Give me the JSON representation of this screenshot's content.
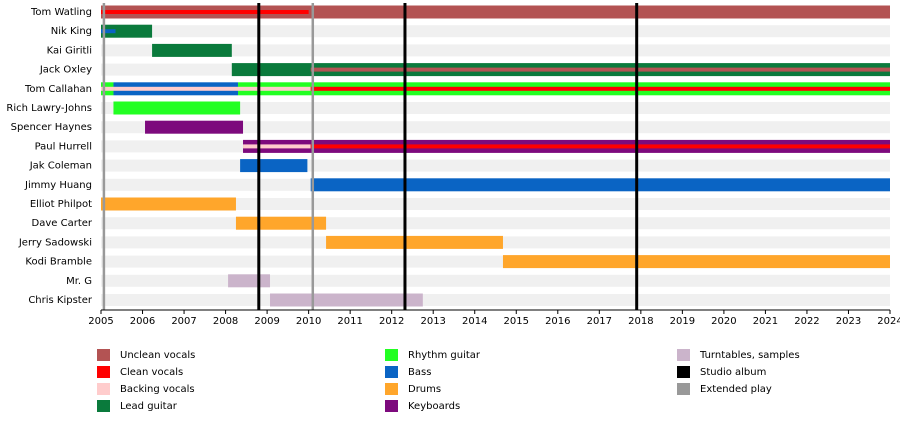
{
  "chart_data": {
    "type": "timeline",
    "xlim": [
      2005,
      2024
    ],
    "xticks": [
      2005,
      2006,
      2007,
      2008,
      2009,
      2010,
      2011,
      2012,
      2013,
      2014,
      2015,
      2016,
      2017,
      2018,
      2019,
      2020,
      2021,
      2022,
      2023,
      2024
    ],
    "legend": [
      {
        "name": "Unclean vocals",
        "color": "#b35353"
      },
      {
        "name": "Clean vocals",
        "color": "#ff0000"
      },
      {
        "name": "Backing vocals",
        "color": "#ffcccc"
      },
      {
        "name": "Lead guitar",
        "color": "#0a7a3c"
      },
      {
        "name": "Rhythm guitar",
        "color": "#22ff22"
      },
      {
        "name": "Bass",
        "color": "#0a64c4"
      },
      {
        "name": "Drums",
        "color": "#ffa62b"
      },
      {
        "name": "Keyboards",
        "color": "#7d0a7d"
      },
      {
        "name": "Turntables, samples",
        "color": "#cbb4cb"
      },
      {
        "name": "Studio album",
        "color": "#000000",
        "lines": [
          2008.8,
          2012.32,
          2017.9
        ]
      },
      {
        "name": "Extended play",
        "color": "#999999",
        "lines": [
          2005.07,
          2010.1
        ]
      }
    ],
    "members": [
      {
        "name": "Tom Watling",
        "bars": [
          {
            "role": "Unclean vocals",
            "start": 2005,
            "end": 2024
          },
          {
            "role": "Clean vocals",
            "start": 2005,
            "end": 2010,
            "style": "stripe"
          }
        ]
      },
      {
        "name": "Nik King",
        "bars": [
          {
            "role": "Lead guitar",
            "start": 2005,
            "end": 2006.23
          },
          {
            "role": "Bass",
            "start": 2005,
            "end": 2005.35,
            "style": "stripe"
          }
        ]
      },
      {
        "name": "Kai Giritli",
        "bars": [
          {
            "role": "Lead guitar",
            "start": 2006.23,
            "end": 2008.15
          }
        ]
      },
      {
        "name": "Jack Oxley",
        "bars": [
          {
            "role": "Lead guitar",
            "start": 2008.15,
            "end": 2024
          },
          {
            "role": "Unclean vocals",
            "start": 2010.05,
            "end": 2024,
            "style": "stripe"
          }
        ]
      },
      {
        "name": "Tom Callahan",
        "bars": [
          {
            "role": "Rhythm guitar",
            "start": 2005,
            "end": 2005.3
          },
          {
            "role": "Bass",
            "start": 2005.3,
            "end": 2008.3
          },
          {
            "role": "Rhythm guitar",
            "start": 2008.3,
            "end": 2024
          },
          {
            "role": "Backing vocals",
            "start": 2005,
            "end": 2010.05,
            "style": "stripe"
          },
          {
            "role": "Clean vocals",
            "start": 2010.05,
            "end": 2024,
            "style": "stripe"
          }
        ]
      },
      {
        "name": "Rich Lawry-Johns",
        "bars": [
          {
            "role": "Rhythm guitar",
            "start": 2005.3,
            "end": 2008.35
          }
        ]
      },
      {
        "name": "Spencer Haynes",
        "bars": [
          {
            "role": "Keyboards",
            "start": 2006.06,
            "end": 2008.42
          }
        ]
      },
      {
        "name": "Paul Hurrell",
        "bars": [
          {
            "role": "Keyboards",
            "start": 2008.42,
            "end": 2024
          },
          {
            "role": "Backing vocals",
            "start": 2008.42,
            "end": 2010.05,
            "style": "stripe"
          },
          {
            "role": "Clean vocals",
            "start": 2010.05,
            "end": 2024,
            "style": "stripe"
          }
        ]
      },
      {
        "name": "Jak Coleman",
        "bars": [
          {
            "role": "Bass",
            "start": 2008.35,
            "end": 2009.97
          }
        ]
      },
      {
        "name": "Jimmy Huang",
        "bars": [
          {
            "role": "Bass",
            "start": 2010.05,
            "end": 2024
          }
        ]
      },
      {
        "name": "Elliot Philpot",
        "bars": [
          {
            "role": "Drums",
            "start": 2005,
            "end": 2008.25
          }
        ]
      },
      {
        "name": "Dave Carter",
        "bars": [
          {
            "role": "Drums",
            "start": 2008.25,
            "end": 2010.42
          }
        ]
      },
      {
        "name": "Jerry Sadowski",
        "bars": [
          {
            "role": "Drums",
            "start": 2010.42,
            "end": 2014.68
          }
        ]
      },
      {
        "name": "Kodi Bramble",
        "bars": [
          {
            "role": "Drums",
            "start": 2014.68,
            "end": 2024
          }
        ]
      },
      {
        "name": "Mr. G",
        "bars": [
          {
            "role": "Turntables, samples",
            "start": 2008.06,
            "end": 2009.07
          }
        ]
      },
      {
        "name": "Chris Kipster",
        "bars": [
          {
            "role": "Turntables, samples",
            "start": 2009.07,
            "end": 2012.75
          }
        ]
      }
    ]
  }
}
